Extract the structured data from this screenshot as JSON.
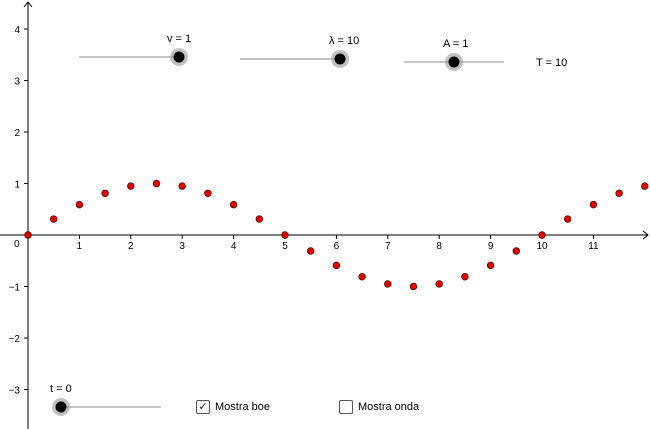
{
  "sliders": [
    {
      "name": "v",
      "label": "v = 1"
    },
    {
      "name": "lambda",
      "label": "λ = 10"
    },
    {
      "name": "A",
      "label": "A = 1"
    },
    {
      "name": "t",
      "label": "t = 0"
    }
  ],
  "period_label": "T = 10",
  "checkboxes": {
    "buoys": {
      "label": "Mostra boe",
      "checked": true,
      "mark": "✓"
    },
    "wave": {
      "label": "Mostra onda",
      "checked": false,
      "mark": ""
    }
  },
  "colors": {
    "point_fill": "#e00000",
    "point_stroke": "#5a0000",
    "axis": "#000000",
    "slider_line": "#888888"
  },
  "chart_data": {
    "type": "scatter",
    "x_ticks": [
      "1",
      "2",
      "3",
      "4",
      "5",
      "6",
      "7",
      "8",
      "9",
      "10",
      "11"
    ],
    "y_ticks": [
      "4",
      "3",
      "2",
      "1",
      "−1",
      "−2",
      "−3"
    ],
    "origin_label": "0",
    "xlim": [
      0,
      12
    ],
    "ylim": [
      -3.5,
      4.5
    ],
    "points": [
      {
        "x": 0,
        "y": 0
      },
      {
        "x": 0.5,
        "y": 0.31
      },
      {
        "x": 1,
        "y": 0.59
      },
      {
        "x": 1.5,
        "y": 0.81
      },
      {
        "x": 2,
        "y": 0.95
      },
      {
        "x": 2.5,
        "y": 1
      },
      {
        "x": 3,
        "y": 0.95
      },
      {
        "x": 3.5,
        "y": 0.81
      },
      {
        "x": 4,
        "y": 0.59
      },
      {
        "x": 4.5,
        "y": 0.31
      },
      {
        "x": 5,
        "y": 0
      },
      {
        "x": 5.5,
        "y": -0.31
      },
      {
        "x": 6,
        "y": -0.59
      },
      {
        "x": 6.5,
        "y": -0.81
      },
      {
        "x": 7,
        "y": -0.95
      },
      {
        "x": 7.5,
        "y": -1
      },
      {
        "x": 8,
        "y": -0.95
      },
      {
        "x": 8.5,
        "y": -0.81
      },
      {
        "x": 9,
        "y": -0.59
      },
      {
        "x": 9.5,
        "y": -0.31
      },
      {
        "x": 10,
        "y": 0
      },
      {
        "x": 10.5,
        "y": 0.31
      },
      {
        "x": 11,
        "y": 0.59
      },
      {
        "x": 11.5,
        "y": 0.81
      },
      {
        "x": 12,
        "y": 0.95
      }
    ]
  }
}
